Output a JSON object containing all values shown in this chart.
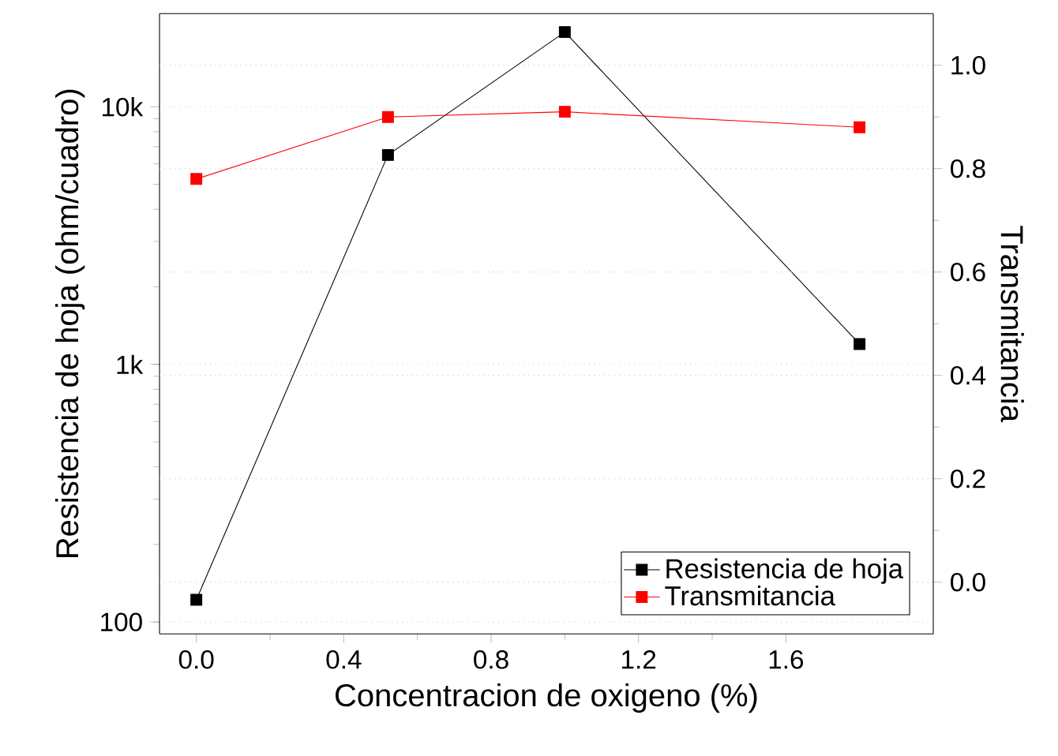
{
  "chart_data": {
    "type": "line",
    "xlabel": "Concentracion de oxigeno (%)",
    "ylabel": "Resistencia de hoja (ohm/cuadro)",
    "y2label": "Transmitancia",
    "x": [
      0.0,
      0.52,
      1.0,
      1.8
    ],
    "series": [
      {
        "name": "Resistencia de hoja",
        "color": "#000000",
        "values": [
          122,
          6500,
          19500,
          1200
        ]
      },
      {
        "name": "Transmitancia",
        "color": "#ff0000",
        "axis": "y2",
        "values": [
          0.78,
          0.9,
          0.91,
          0.88
        ]
      }
    ],
    "xlim": [
      -0.1,
      2.0
    ],
    "xticks": [
      {
        "value": 0,
        "label": "0.0"
      },
      0.4,
      0.8,
      1.2,
      1.6
    ],
    "ylim": [
      90,
      23000
    ],
    "yticks": [
      100,
      {
        "value": 1000,
        "label": "1k"
      },
      {
        "value": 10000,
        "label": "10k"
      }
    ],
    "y2lim": [
      -0.1,
      1.1
    ],
    "y2ticks": [
      {
        "value": 0,
        "label": "0.0"
      },
      0.2,
      0.4,
      0.6,
      0.8,
      {
        "value": 1,
        "label": "1.0"
      }
    ],
    "log": "y",
    "grid": "y",
    "legend": "bottom right",
    "marker": "square",
    "line_style": "solid"
  }
}
